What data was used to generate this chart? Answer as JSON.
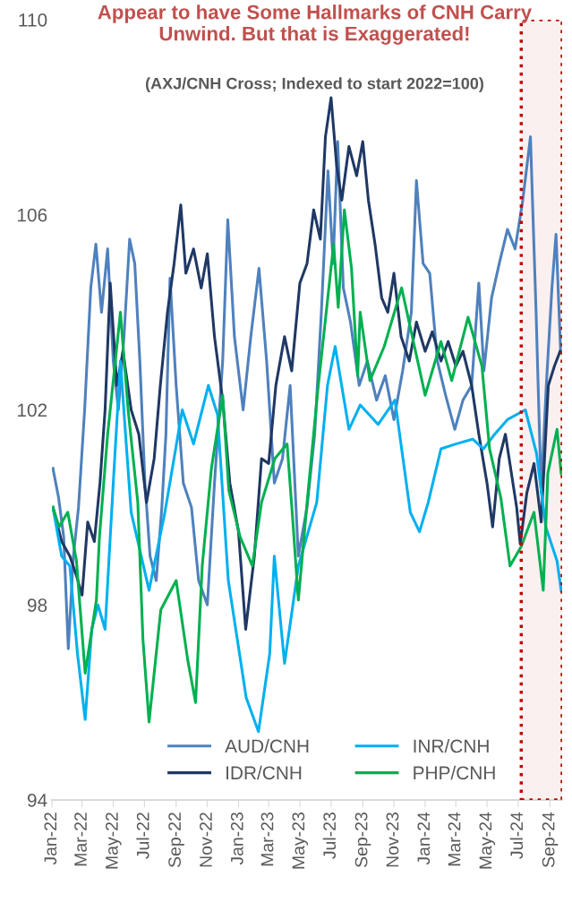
{
  "chart_data": {
    "type": "line",
    "title": "Appear to have Some Hallmarks of CNH Carry Unwind. But that is Exaggerated!",
    "subtitle": "(AXJ/CNH Cross; Indexed to start 2022=100)",
    "series": [
      {
        "name": "AUD/CNH",
        "color": "#4f81bd",
        "x": [
          "2022-01-03",
          "2022-01-14",
          "2022-01-24",
          "2022-02-02",
          "2022-02-12",
          "2022-02-22",
          "2022-03-06",
          "2022-03-18",
          "2022-03-28",
          "2022-04-08",
          "2022-04-20",
          "2022-05-01",
          "2022-05-11",
          "2022-05-22",
          "2022-06-02",
          "2022-06-12",
          "2022-06-22",
          "2022-07-02",
          "2022-07-12",
          "2022-07-24",
          "2022-08-04",
          "2022-08-12",
          "2022-08-20",
          "2022-09-01",
          "2022-09-15",
          "2022-10-01",
          "2022-10-15",
          "2022-11-01",
          "2022-11-15",
          "2022-12-01",
          "2022-12-11",
          "2022-12-24",
          "2023-01-10",
          "2023-01-25",
          "2023-02-10",
          "2023-02-25",
          "2023-03-12",
          "2023-03-28",
          "2023-04-12",
          "2023-04-28",
          "2023-05-15",
          "2023-05-30",
          "2023-06-12",
          "2023-06-25",
          "2023-07-05",
          "2023-07-14",
          "2023-07-25",
          "2023-08-08",
          "2023-08-25",
          "2023-09-10",
          "2023-09-28",
          "2023-10-15",
          "2023-11-01",
          "2023-11-18",
          "2023-12-05",
          "2023-12-15",
          "2023-12-28",
          "2024-01-10",
          "2024-01-25",
          "2024-02-10",
          "2024-02-28",
          "2024-03-15",
          "2024-04-01",
          "2024-04-15",
          "2024-04-25",
          "2024-05-10",
          "2024-05-25",
          "2024-06-10",
          "2024-06-25",
          "2024-07-10",
          "2024-07-25",
          "2024-08-05",
          "2024-08-15",
          "2024-08-25",
          "2024-09-05",
          "2024-09-13",
          "2024-09-22"
        ],
        "values": [
          100.8,
          100.2,
          99.4,
          97.1,
          99.0,
          100.0,
          102.0,
          104.5,
          105.4,
          104.0,
          105.3,
          103.0,
          102.0,
          103.5,
          105.5,
          105.0,
          103.0,
          100.5,
          99.0,
          98.5,
          100.0,
          101.5,
          104.7,
          102.5,
          100.5,
          100.0,
          98.5,
          98.0,
          100.5,
          103.0,
          105.9,
          103.5,
          102.0,
          103.5,
          104.9,
          103.0,
          100.5,
          101.0,
          102.5,
          99.0,
          100.0,
          101.5,
          104.0,
          106.9,
          105.0,
          107.5,
          104.5,
          103.8,
          102.5,
          103.0,
          102.2,
          102.7,
          101.8,
          102.8,
          104.0,
          106.7,
          105.0,
          104.8,
          103.0,
          102.3,
          101.6,
          102.2,
          102.5,
          104.6,
          102.8,
          104.3,
          105.0,
          105.7,
          105.3,
          106.3,
          107.6,
          104.0,
          100.3,
          102.5,
          104.5,
          105.6,
          103.2
        ]
      },
      {
        "name": "IDR/CNH",
        "color": "#1f3864",
        "x": [
          "2022-01-03",
          "2022-01-20",
          "2022-02-05",
          "2022-02-18",
          "2022-03-01",
          "2022-03-12",
          "2022-03-25",
          "2022-04-05",
          "2022-04-15",
          "2022-04-25",
          "2022-05-08",
          "2022-05-20",
          "2022-06-05",
          "2022-06-20",
          "2022-07-05",
          "2022-07-20",
          "2022-08-01",
          "2022-08-15",
          "2022-08-28",
          "2022-09-10",
          "2022-09-20",
          "2022-10-05",
          "2022-10-20",
          "2022-11-01",
          "2022-11-15",
          "2022-12-01",
          "2022-12-15",
          "2023-01-01",
          "2023-01-15",
          "2023-02-01",
          "2023-02-15",
          "2023-03-01",
          "2023-03-15",
          "2023-04-01",
          "2023-04-15",
          "2023-05-01",
          "2023-05-15",
          "2023-05-28",
          "2023-06-10",
          "2023-06-20",
          "2023-07-01",
          "2023-07-12",
          "2023-07-22",
          "2023-08-05",
          "2023-08-20",
          "2023-09-01",
          "2023-09-12",
          "2023-09-25",
          "2023-10-08",
          "2023-10-20",
          "2023-11-01",
          "2023-11-15",
          "2023-12-01",
          "2023-12-15",
          "2024-01-01",
          "2024-01-15",
          "2024-02-01",
          "2024-02-15",
          "2024-03-01",
          "2024-03-15",
          "2024-04-01",
          "2024-04-15",
          "2024-05-01",
          "2024-05-12",
          "2024-05-25",
          "2024-06-06",
          "2024-06-28",
          "2024-07-05",
          "2024-07-18",
          "2024-08-01",
          "2024-08-15",
          "2024-08-29",
          "2024-09-10",
          "2024-09-21"
        ],
        "values": [
          100.0,
          99.3,
          99.0,
          98.6,
          98.2,
          99.7,
          99.3,
          100.5,
          102.0,
          104.6,
          102.5,
          103.2,
          102.0,
          101.5,
          100.1,
          101.0,
          102.5,
          104.0,
          105.0,
          106.2,
          104.8,
          105.3,
          104.5,
          105.2,
          103.5,
          102.2,
          100.5,
          99.5,
          97.5,
          99.0,
          101.0,
          100.9,
          102.5,
          103.5,
          102.8,
          104.6,
          105.0,
          106.1,
          105.5,
          107.6,
          108.4,
          107.0,
          106.3,
          107.4,
          106.8,
          107.5,
          106.3,
          105.4,
          104.3,
          104.0,
          104.8,
          103.5,
          103.0,
          103.8,
          103.2,
          103.6,
          103.0,
          103.4,
          102.9,
          103.2,
          102.5,
          101.5,
          100.5,
          99.6,
          101.0,
          101.5,
          100.0,
          99.25,
          100.3,
          100.9,
          99.7,
          102.5,
          102.9,
          103.2
        ]
      },
      {
        "name": "INR/CNH",
        "color": "#00b0f0",
        "x": [
          "2022-01-03",
          "2022-01-20",
          "2022-02-05",
          "2022-02-20",
          "2022-03-07",
          "2022-03-20",
          "2022-04-01",
          "2022-04-15",
          "2022-05-01",
          "2022-05-15",
          "2022-05-25",
          "2022-06-05",
          "2022-07-10",
          "2022-08-10",
          "2022-09-13",
          "2022-10-05",
          "2022-11-03",
          "2022-11-21",
          "2022-12-12",
          "2023-01-16",
          "2023-02-09",
          "2023-03-03",
          "2023-03-12",
          "2023-04-01",
          "2023-04-16",
          "2023-04-28",
          "2023-06-03",
          "2023-06-24",
          "2023-07-09",
          "2023-08-05",
          "2023-08-27",
          "2023-10-01",
          "2023-11-03",
          "2023-12-03",
          "2023-12-21",
          "2024-01-07",
          "2024-02-01",
          "2024-03-01",
          "2024-04-03",
          "2024-04-24",
          "2024-05-16",
          "2024-06-10",
          "2024-07-15",
          "2024-08-06",
          "2024-08-24",
          "2024-09-15",
          "2024-09-23"
        ],
        "values": [
          100.0,
          99.0,
          98.8,
          97.0,
          95.65,
          97.5,
          98.0,
          97.5,
          100.5,
          103.0,
          101.5,
          99.9,
          98.3,
          99.9,
          102.0,
          101.3,
          102.5,
          101.9,
          98.5,
          96.1,
          95.4,
          97.0,
          99.0,
          96.8,
          97.9,
          98.8,
          100.1,
          102.5,
          103.3,
          101.6,
          102.1,
          101.7,
          102.2,
          99.9,
          99.5,
          100.1,
          101.2,
          101.3,
          101.4,
          101.2,
          101.5,
          101.8,
          102.0,
          101.1,
          99.6,
          98.9,
          98.3
        ]
      },
      {
        "name": "PHP/CNH",
        "color": "#00b050",
        "x": [
          "2022-01-03",
          "2022-01-15",
          "2022-02-01",
          "2022-02-18",
          "2022-03-07",
          "2022-03-29",
          "2022-04-04",
          "2022-04-20",
          "2022-05-15",
          "2022-05-30",
          "2022-06-18",
          "2022-06-28",
          "2022-07-10",
          "2022-08-02",
          "2022-09-01",
          "2022-09-24",
          "2022-10-09",
          "2022-10-22",
          "2022-11-09",
          "2022-12-01",
          "2022-12-13",
          "2023-01-04",
          "2023-01-28",
          "2023-02-15",
          "2023-03-13",
          "2023-04-06",
          "2023-04-16",
          "2023-04-28",
          "2023-05-16",
          "2023-06-06",
          "2023-07-06",
          "2023-07-15",
          "2023-07-27",
          "2023-08-10",
          "2023-08-22",
          "2023-08-27",
          "2023-09-15",
          "2023-10-13",
          "2023-11-16",
          "2023-12-09",
          "2024-01-01",
          "2024-02-01",
          "2024-02-22",
          "2024-03-25",
          "2024-04-21",
          "2024-05-06",
          "2024-05-28",
          "2024-06-15",
          "2024-07-07",
          "2024-08-01",
          "2024-08-19",
          "2024-08-28",
          "2024-09-15",
          "2024-09-23"
        ],
        "values": [
          100.0,
          99.6,
          99.9,
          98.9,
          96.6,
          98.1,
          99.4,
          101.5,
          104.0,
          102.0,
          100.1,
          97.3,
          95.6,
          97.9,
          98.5,
          96.85,
          96.0,
          98.8,
          100.8,
          102.3,
          100.35,
          99.4,
          98.8,
          100.1,
          101.0,
          101.3,
          99.9,
          98.1,
          100.2,
          102.5,
          105.4,
          104.1,
          106.1,
          104.9,
          102.7,
          104.0,
          102.6,
          103.3,
          104.5,
          103.4,
          102.3,
          103.4,
          102.6,
          103.9,
          102.9,
          101.2,
          100.2,
          98.8,
          99.2,
          99.9,
          98.3,
          100.7,
          101.6,
          100.7
        ]
      }
    ],
    "xlim": [
      "2022-01-01",
      "2024-09-25"
    ],
    "xticks": [
      {
        "value": "2022-01-01",
        "label": "Jan-22"
      },
      {
        "value": "2022-03-01",
        "label": "Mar-22"
      },
      {
        "value": "2022-05-01",
        "label": "May-22"
      },
      {
        "value": "2022-07-01",
        "label": "Jul-22"
      },
      {
        "value": "2022-09-01",
        "label": "Sep-22"
      },
      {
        "value": "2022-11-01",
        "label": "Nov-22"
      },
      {
        "value": "2023-01-01",
        "label": "Jan-23"
      },
      {
        "value": "2023-03-01",
        "label": "Mar-23"
      },
      {
        "value": "2023-05-01",
        "label": "May-23"
      },
      {
        "value": "2023-07-01",
        "label": "Jul-23"
      },
      {
        "value": "2023-09-01",
        "label": "Sep-23"
      },
      {
        "value": "2023-11-01",
        "label": "Nov-23"
      },
      {
        "value": "2024-01-01",
        "label": "Jan-24"
      },
      {
        "value": "2024-03-01",
        "label": "Mar-24"
      },
      {
        "value": "2024-05-01",
        "label": "May-24"
      },
      {
        "value": "2024-07-01",
        "label": "Jul-24"
      },
      {
        "value": "2024-09-01",
        "label": "Sep-24"
      }
    ],
    "ylim": [
      94,
      110
    ],
    "yticks": [
      94,
      98,
      102,
      106,
      110
    ],
    "bands": [
      {
        "axis": "x",
        "from": "2024-07-07",
        "to": "2024-09-25",
        "color": "#c00000"
      }
    ],
    "legend": "bottom",
    "grid": false,
    "marker": "none",
    "line_style": "solid"
  }
}
